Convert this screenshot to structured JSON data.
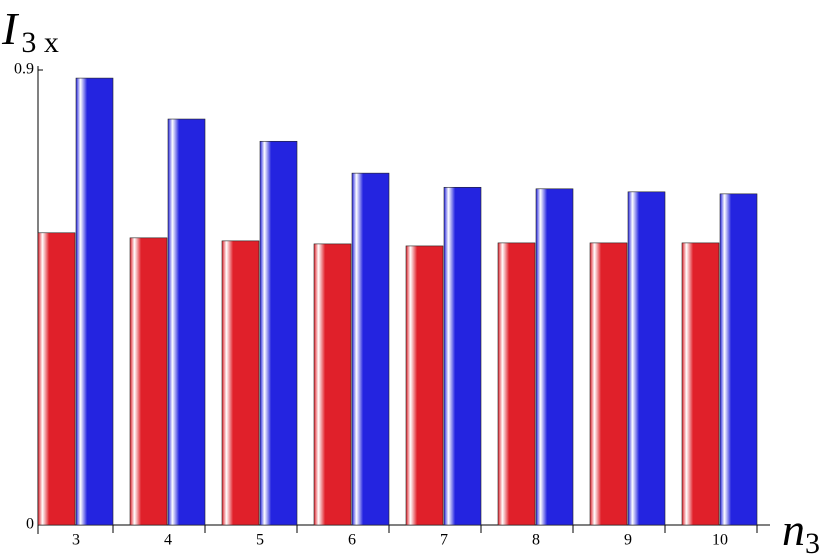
{
  "chart_data": {
    "type": "bar",
    "y_label": "I",
    "y_label_sub": "3 x",
    "x_label": "n",
    "x_label_sub": "3",
    "categories": [
      "3",
      "4",
      "5",
      "6",
      "7",
      "8",
      "9",
      "10"
    ],
    "series": [
      {
        "color": "#e0202a",
        "values": [
          0.578,
          0.568,
          0.562,
          0.556,
          0.552,
          0.558,
          0.558,
          0.558
        ]
      },
      {
        "color": "#2424e0",
        "values": [
          0.884,
          0.803,
          0.759,
          0.696,
          0.668,
          0.665,
          0.659,
          0.655
        ]
      }
    ],
    "ylim": [
      0,
      0.9
    ],
    "yticks": [
      0,
      0.9
    ]
  }
}
